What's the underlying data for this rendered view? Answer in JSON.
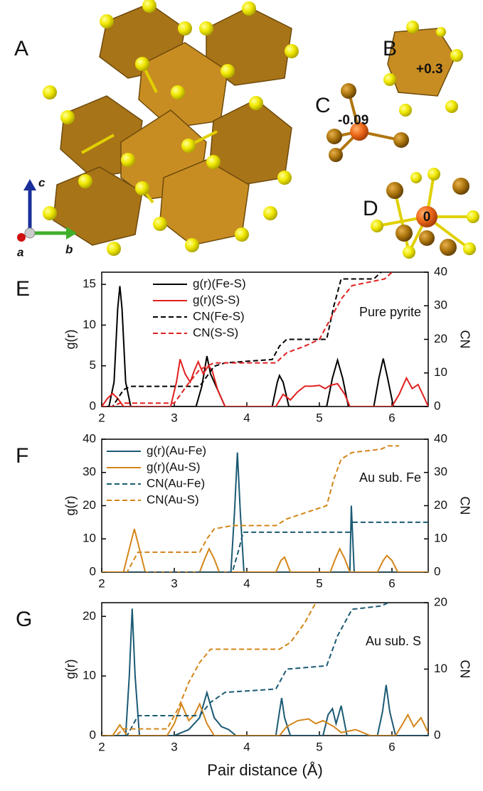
{
  "structure": {
    "labels": [
      "A",
      "B",
      "C",
      "D"
    ],
    "charges": [
      "+0.3",
      "-0.09",
      "0"
    ],
    "axes": [
      "a",
      "b",
      "c"
    ]
  },
  "chart_data": [
    {
      "type": "line",
      "panel_label": "E",
      "ylabel": "g(r)",
      "y2label": "CN",
      "annotation": "Pure pyrite",
      "xlim": [
        2,
        6.5
      ],
      "xticks": [
        2,
        3,
        4,
        5,
        6
      ],
      "ylim": [
        0,
        16.5
      ],
      "yticks": [
        0,
        5,
        10,
        15
      ],
      "y2lim": [
        0,
        40
      ],
      "y2ticks": [
        0,
        10,
        20,
        30,
        40
      ],
      "legend": "upper left",
      "series": [
        {
          "name": "g(r)(Fe-S)",
          "color": "#000000",
          "dash": false,
          "axis": "y",
          "x": [
            2,
            2.1,
            2.17,
            2.22,
            2.25,
            2.28,
            2.33,
            2.4,
            3.3,
            3.38,
            3.45,
            3.5,
            3.55,
            3.6,
            3.7,
            4.35,
            4.42,
            4.45,
            4.5,
            4.58,
            5.1,
            5.18,
            5.25,
            5.32,
            5.4,
            5.75,
            5.82,
            5.88,
            5.94,
            6.02,
            6.5
          ],
          "values": [
            0,
            0,
            3,
            12,
            14.8,
            12,
            3,
            0,
            0,
            2.5,
            6.2,
            4,
            3,
            2,
            0,
            0,
            3,
            3.8,
            3,
            0,
            0,
            3.5,
            5.7,
            3.5,
            0,
            0,
            3.5,
            5.9,
            3.5,
            0,
            0
          ]
        },
        {
          "name": "g(r)(S-S)",
          "color": "#e02020",
          "dash": false,
          "axis": "y",
          "x": [
            2,
            2.08,
            2.15,
            2.22,
            2.3,
            2.95,
            3.03,
            3.08,
            3.15,
            3.22,
            3.28,
            3.33,
            3.4,
            3.47,
            3.52,
            3.6,
            3.7,
            4.4,
            4.5,
            4.6,
            4.7,
            4.8,
            4.9,
            5.0,
            5.08,
            5.15,
            5.25,
            5.35,
            5.42,
            6.0,
            6.1,
            6.2,
            6.28,
            6.36,
            6.45,
            6.5
          ],
          "values": [
            0,
            1,
            1.6,
            1,
            0,
            0,
            3,
            5.8,
            4,
            3,
            4.5,
            5.5,
            4,
            5,
            4.5,
            2,
            0,
            0,
            1.5,
            0.8,
            1.8,
            2.5,
            2.5,
            2.6,
            2.2,
            2.6,
            2.8,
            1.5,
            0,
            0,
            1.5,
            3.5,
            2.2,
            2.7,
            1,
            0
          ]
        },
        {
          "name": "CN(Fe-S)",
          "color": "#000000",
          "dash": true,
          "axis": "y2",
          "x": [
            2,
            2.15,
            2.3,
            2.4,
            3.35,
            3.45,
            3.55,
            3.7,
            4.35,
            4.45,
            4.55,
            5.1,
            5.2,
            5.3,
            5.75,
            5.85
          ],
          "values": [
            0,
            0,
            5,
            6,
            6,
            9,
            12,
            13,
            14,
            18,
            20,
            20,
            30,
            38,
            38,
            40
          ]
        },
        {
          "name": "CN(S-S)",
          "color": "#e02020",
          "dash": true,
          "axis": "y2",
          "x": [
            2,
            2.15,
            2.25,
            3.0,
            3.1,
            3.2,
            3.35,
            3.55,
            4.4,
            4.55,
            4.8,
            5.0,
            5.2,
            5.3,
            5.45,
            5.9,
            6.0
          ],
          "values": [
            0,
            0,
            1,
            1,
            4,
            7,
            11,
            13,
            13,
            16,
            18,
            20,
            28,
            32,
            36,
            38,
            40
          ]
        }
      ]
    },
    {
      "type": "line",
      "panel_label": "F",
      "ylabel": "g(r)",
      "y2label": "CN",
      "annotation": "Au sub. Fe",
      "xlim": [
        2,
        6.5
      ],
      "xticks": [
        2,
        3,
        4,
        5,
        6
      ],
      "ylim": [
        0,
        40
      ],
      "yticks": [
        0,
        10,
        20,
        30,
        40
      ],
      "y2lim": [
        0,
        40
      ],
      "y2ticks": [
        0,
        10,
        20,
        30,
        40
      ],
      "legend": "upper left",
      "series": [
        {
          "name": "g(r)(Au-Fe)",
          "color": "#1b5a74",
          "dash": false,
          "axis": "y",
          "x": [
            2,
            3.78,
            3.83,
            3.87,
            3.91,
            3.96,
            5.42,
            5.44,
            5.46,
            5.48,
            6.5
          ],
          "values": [
            0,
            0,
            18,
            36,
            18,
            0,
            0,
            20,
            10,
            0,
            0
          ]
        },
        {
          "name": "g(r)(Au-S)",
          "color": "#d4861a",
          "dash": false,
          "axis": "y",
          "x": [
            2,
            2.3,
            2.38,
            2.45,
            2.52,
            2.6,
            3.35,
            3.42,
            3.48,
            3.55,
            3.62,
            4.4,
            4.47,
            4.52,
            4.6,
            5.15,
            5.22,
            5.28,
            5.35,
            5.42,
            5.8,
            5.88,
            5.93,
            6.0,
            6.08,
            6.5
          ],
          "values": [
            0,
            0,
            7,
            13,
            7,
            0,
            0,
            4,
            7,
            4,
            0,
            0,
            3.5,
            4.5,
            0,
            0,
            4,
            7,
            4,
            0,
            0,
            3.5,
            5,
            3.5,
            0,
            0
          ]
        },
        {
          "name": "CN(Au-Fe)",
          "color": "#1b5a74",
          "dash": true,
          "axis": "y2",
          "x": [
            2,
            3.8,
            3.88,
            3.95,
            5.43,
            5.46,
            6.5
          ],
          "values": [
            0,
            0,
            6,
            12,
            12,
            15,
            15
          ]
        },
        {
          "name": "CN(Au-S)",
          "color": "#d4861a",
          "dash": true,
          "axis": "y2",
          "x": [
            2,
            2.35,
            2.5,
            3.35,
            3.45,
            3.55,
            3.8,
            4.4,
            4.55,
            5.1,
            5.2,
            5.3,
            5.45,
            5.85,
            5.95,
            6.1
          ],
          "values": [
            0,
            0,
            6,
            6,
            10,
            13,
            14,
            14,
            16,
            20,
            28,
            34,
            36,
            37,
            38,
            38
          ]
        }
      ]
    },
    {
      "type": "line",
      "panel_label": "G",
      "ylabel": "g(r)",
      "y2label": "CN",
      "annotation": "Au sub. S",
      "xlabel": "Pair distance (Å)",
      "xlim": [
        2,
        6.5
      ],
      "xticks": [
        2,
        3,
        4,
        5,
        6
      ],
      "ylim": [
        0,
        22.3
      ],
      "yticks": [
        0,
        10,
        20
      ],
      "y2lim": [
        0,
        20
      ],
      "y2ticks": [
        0,
        10,
        20
      ],
      "series": [
        {
          "color": "#1b5a74",
          "dash": false,
          "axis": "y",
          "x": [
            2,
            2.33,
            2.38,
            2.42,
            2.46,
            2.52,
            3.0,
            3.2,
            3.35,
            3.45,
            3.55,
            3.65,
            3.75,
            3.85,
            4.4,
            4.45,
            4.48,
            4.52,
            4.6,
            5.05,
            5.12,
            5.18,
            5.23,
            5.3,
            5.38,
            5.8,
            5.87,
            5.92,
            5.97,
            6.05,
            6.5
          ],
          "values": [
            0,
            0,
            10,
            21.3,
            10,
            0,
            0,
            1,
            3,
            7.2,
            3,
            1.5,
            1,
            0,
            0,
            4,
            6.3,
            3,
            0,
            0,
            3.5,
            4.5,
            2,
            5,
            0,
            0,
            4,
            8.5,
            4,
            0,
            0
          ]
        },
        {
          "color": "#d4861a",
          "dash": false,
          "axis": "y",
          "x": [
            2,
            2.15,
            2.25,
            2.35,
            2.9,
            3.0,
            3.1,
            3.2,
            3.28,
            3.35,
            3.45,
            3.55,
            4.45,
            4.55,
            4.7,
            4.85,
            4.95,
            5.05,
            5.2,
            5.3,
            5.5,
            5.7,
            6.05,
            6.15,
            6.22,
            6.3,
            6.4,
            6.5
          ],
          "values": [
            0,
            0,
            1.8,
            0,
            0,
            2,
            5.3,
            2.5,
            3.5,
            5.3,
            2,
            0,
            0,
            1.5,
            2.5,
            2.8,
            2,
            2.5,
            1.5,
            0.5,
            1,
            0,
            0,
            2,
            3.5,
            1.5,
            3,
            0.5
          ]
        },
        {
          "color": "#1b5a74",
          "dash": true,
          "axis": "y2",
          "x": [
            2,
            2.35,
            2.5,
            3.35,
            3.5,
            3.7,
            4.4,
            4.55,
            5.1,
            5.25,
            5.45,
            5.85,
            5.95
          ],
          "values": [
            0,
            0,
            3,
            3,
            5,
            6.5,
            7,
            10,
            10.5,
            15,
            19,
            19.5,
            20
          ]
        },
        {
          "color": "#d4861a",
          "dash": true,
          "axis": "y2",
          "x": [
            2,
            2.2,
            2.3,
            2.9,
            3.05,
            3.2,
            3.35,
            3.5,
            4.45,
            4.6,
            4.8,
            4.95
          ],
          "values": [
            0,
            0,
            1,
            1,
            4,
            8,
            11,
            13,
            13,
            14,
            17,
            20
          ]
        }
      ]
    }
  ]
}
